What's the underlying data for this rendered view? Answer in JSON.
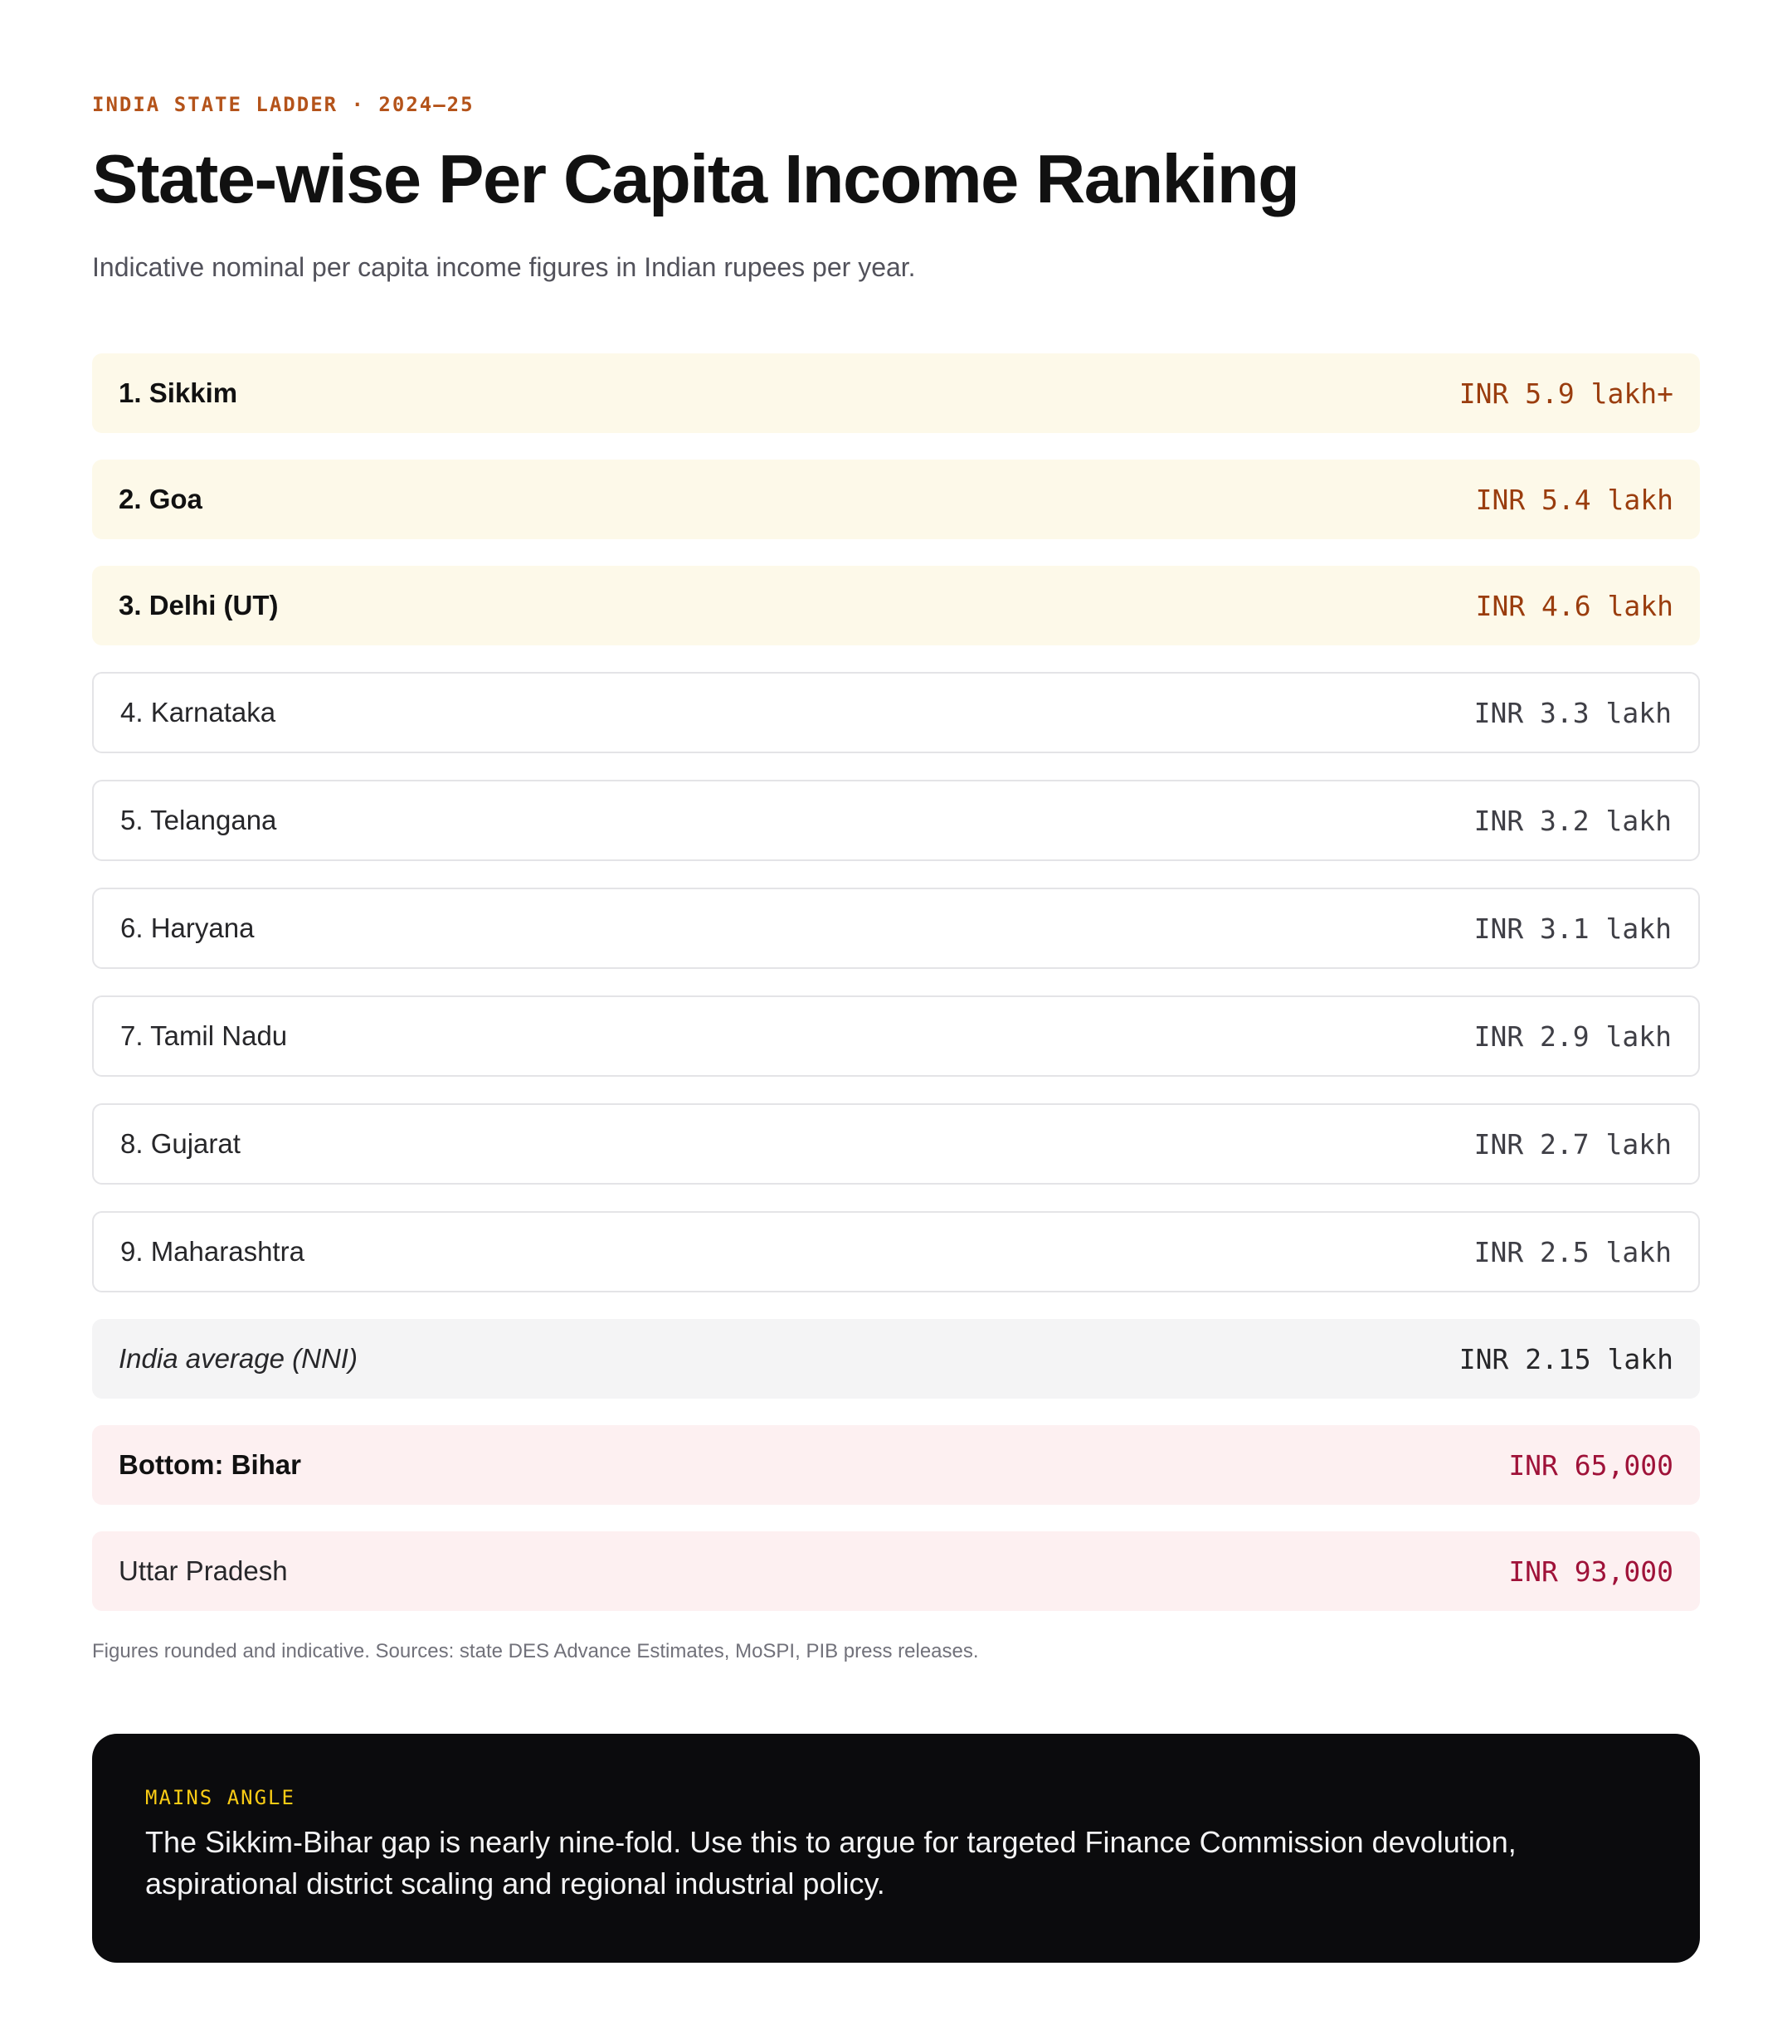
{
  "header": {
    "eyebrow": "INDIA STATE LADDER · 2024–25",
    "title": "State-wise Per Capita Income Ranking",
    "subtitle": "Indicative nominal per capita income figures in Indian rupees per year."
  },
  "rows": [
    {
      "name": "1. Sikkim",
      "value": "INR 5.9 lakh+",
      "style": "top"
    },
    {
      "name": "2. Goa",
      "value": "INR 5.4 lakh",
      "style": "top"
    },
    {
      "name": "3. Delhi (UT)",
      "value": "INR 4.6 lakh",
      "style": "top"
    },
    {
      "name": "4. Karnataka",
      "value": "INR 3.3 lakh",
      "style": "plain"
    },
    {
      "name": "5. Telangana",
      "value": "INR 3.2 lakh",
      "style": "plain"
    },
    {
      "name": "6. Haryana",
      "value": "INR 3.1 lakh",
      "style": "plain"
    },
    {
      "name": "7. Tamil Nadu",
      "value": "INR 2.9 lakh",
      "style": "plain"
    },
    {
      "name": "8. Gujarat",
      "value": "INR 2.7 lakh",
      "style": "plain"
    },
    {
      "name": "9. Maharashtra",
      "value": "INR 2.5 lakh",
      "style": "plain"
    },
    {
      "name": "India average (NNI)",
      "value": "INR 2.15 lakh",
      "style": "avg"
    },
    {
      "name": "Bottom: Bihar",
      "value": "INR 65,000",
      "style": "low bold"
    },
    {
      "name": "Uttar Pradesh",
      "value": "INR 93,000",
      "style": "low"
    }
  ],
  "footnote": "Figures rounded and indicative. Sources: state DES Advance Estimates, MoSPI, PIB press releases.",
  "callout": {
    "label": "MAINS ANGLE",
    "text": "The Sikkim-Bihar gap is nearly nine-fold. Use this to argue for targeted Finance Commission devolution, aspirational district scaling and regional industrial policy."
  },
  "colors": {
    "accent": "#b4531a",
    "top_row_bg": "#fdf9e9",
    "low_row_bg": "#fdf0f1",
    "avg_row_bg": "#f4f4f5",
    "callout_bg": "#0b0b0d",
    "callout_label": "#facc15"
  }
}
